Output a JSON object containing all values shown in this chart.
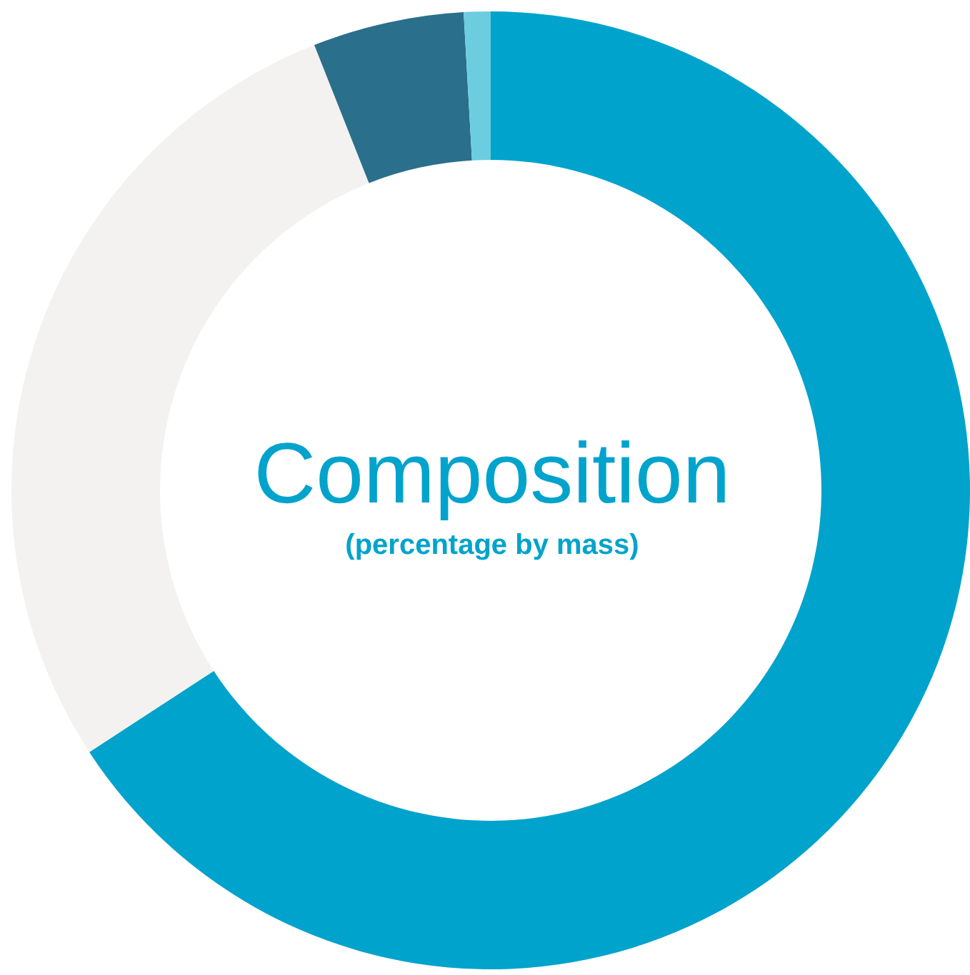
{
  "chart_data": {
    "type": "donut",
    "title": "Composition",
    "subtitle": "(percentage by mass)",
    "categories": [
      null,
      null,
      null,
      null
    ],
    "values": [
      65.8,
      28.2,
      5.1,
      0.9
    ],
    "colors": [
      "#00a3cc",
      "#f3f2f1",
      "#2a6f8c",
      "#6ccde0"
    ],
    "legend": false
  }
}
